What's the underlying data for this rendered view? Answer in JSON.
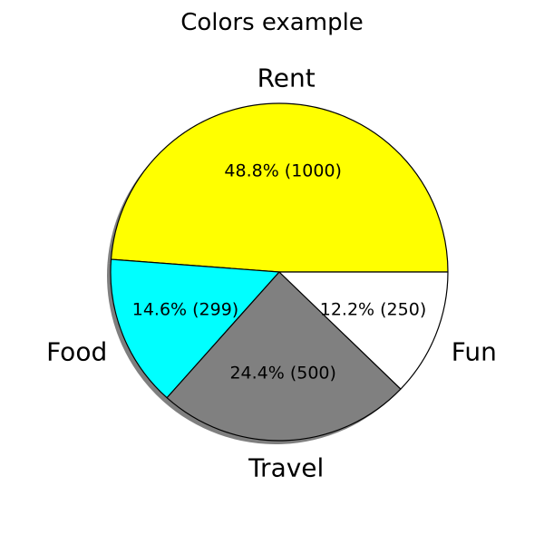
{
  "chart_data": {
    "type": "pie",
    "title": "Colors example",
    "categories": [
      "Rent",
      "Food",
      "Travel",
      "Fun"
    ],
    "values": [
      1000,
      299,
      500,
      250
    ],
    "percent_labels": [
      "48.8% (1000)",
      "14.6% (299)",
      "24.4% (500)",
      "12.2% (250)"
    ],
    "colors": [
      "#ffff00",
      "#00ffff",
      "#808080",
      "#ffffff"
    ],
    "edge_color": "#000000",
    "shadow": true,
    "start_angle_deg": 0,
    "direction": "counterclockwise"
  }
}
